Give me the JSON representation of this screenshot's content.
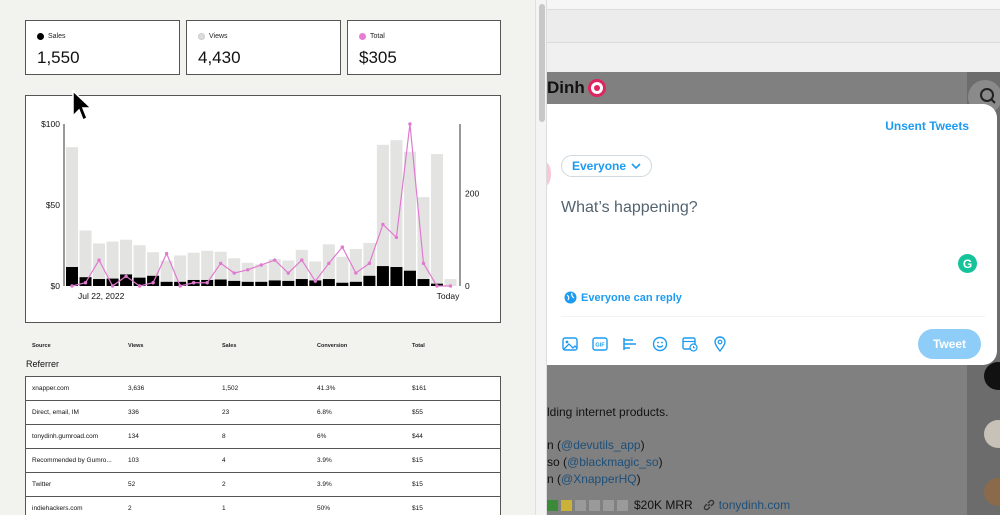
{
  "stats": [
    {
      "label": "Sales",
      "value": "1,550",
      "color": "#000000"
    },
    {
      "label": "Views",
      "value": "4,430",
      "color": "#dddddd"
    },
    {
      "label": "Total",
      "value": "$305",
      "color": "#e87bd3"
    }
  ],
  "chart_data": {
    "type": "bar",
    "left_ticks": [
      "$100",
      "$50",
      "$0"
    ],
    "right_ticks": [
      "200",
      "0"
    ],
    "x_labels": [
      "Jul 22, 2022",
      "Today"
    ],
    "ylim_left": [
      0,
      100
    ],
    "ylim_right": [
      0,
      350
    ],
    "colors": {
      "views": "#e3e3e1",
      "sales": "#000000",
      "total": "#e07ad0"
    },
    "series": [
      {
        "values": [
          300,
          120,
          92,
          96,
          100,
          88,
          73,
          55,
          66,
          72,
          76,
          74,
          60,
          50,
          47,
          58,
          55,
          78,
          53,
          90,
          63,
          80,
          93,
          305,
          315,
          290,
          192,
          285,
          15
        ]
      },
      {
        "values": [
          41,
          19,
          15,
          16,
          25,
          18,
          22,
          9,
          9,
          13,
          13,
          14,
          11,
          9,
          9,
          12,
          11,
          15,
          12,
          15,
          7,
          9,
          22,
          43,
          41,
          33,
          15,
          5,
          0
        ]
      },
      {
        "values": [
          0,
          2,
          16,
          0,
          6,
          0,
          2,
          20,
          0,
          2,
          2,
          14,
          8,
          10,
          13,
          16,
          8,
          16,
          3,
          14,
          24,
          8,
          14,
          38,
          30,
          100,
          14,
          0,
          0
        ]
      }
    ]
  },
  "table": {
    "columns": [
      "Source",
      "Views",
      "Sales",
      "Conversion",
      "Total"
    ],
    "group": "Referrer",
    "rows": [
      {
        "source": "xnapper.com",
        "views": "3,636",
        "sales": "1,502",
        "conversion": "41.3%",
        "total": "$161"
      },
      {
        "source": "Direct, email, IM",
        "views": "336",
        "sales": "23",
        "conversion": "6.8%",
        "total": "$55"
      },
      {
        "source": "tonydinh.gumroad.com",
        "views": "134",
        "sales": "8",
        "conversion": "6%",
        "total": "$44"
      },
      {
        "source": "Recommended by Gumro...",
        "views": "103",
        "sales": "4",
        "conversion": "3.9%",
        "total": "$15"
      },
      {
        "source": "Twitter",
        "views": "52",
        "sales": "2",
        "conversion": "3.9%",
        "total": "$15"
      },
      {
        "source": "indiehackers.com",
        "views": "2",
        "sales": "1",
        "conversion": "50%",
        "total": "$15"
      }
    ]
  },
  "twitter": {
    "name": "Dinh",
    "unsent": "Unsent Tweets",
    "audience": "Everyone",
    "placeholder": "What’s happening?",
    "reply": "Everyone can reply",
    "tweet": "Tweet",
    "bio_text": "lding internet products.",
    "links": [
      {
        "prefix": "n (",
        "handle": "@devutils_app",
        "suffix": ")"
      },
      {
        "prefix": "so (",
        "handle": "@blackmagic_so",
        "suffix": ")"
      },
      {
        "prefix": "n (",
        "handle": "@XnapperHQ",
        "suffix": ")"
      }
    ],
    "mrr": "$20K MRR",
    "site": "tonydinh.com"
  }
}
